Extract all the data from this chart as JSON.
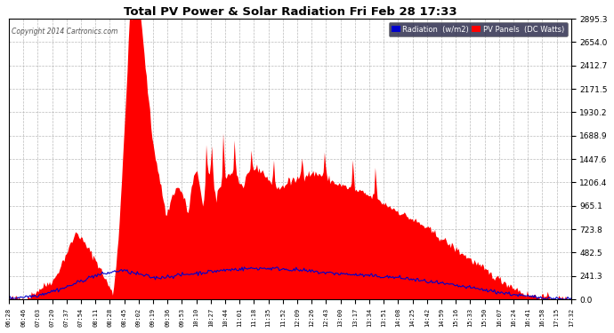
{
  "title": "Total PV Power & Solar Radiation Fri Feb 28 17:33",
  "copyright": "Copyright 2014 Cartronics.com",
  "bg_color": "#ffffff",
  "plot_bg_color": "#ffffff",
  "grid_color": "#aaaaaa",
  "pv_color": "#ff0000",
  "radiation_color": "#0000cc",
  "yticks": [
    0.0,
    241.3,
    482.5,
    723.8,
    965.1,
    1206.4,
    1447.6,
    1688.9,
    1930.2,
    2171.5,
    2412.7,
    2654.0,
    2895.3
  ],
  "ylim": [
    0,
    2895.3
  ],
  "legend_radiation_bg": "#0000cc",
  "legend_pv_bg": "#ff0000",
  "legend_radiation_text": "Radiation  (w/m2)",
  "legend_pv_text": "PV Panels  (DC Watts)",
  "x_labels": [
    "06:28",
    "06:46",
    "07:03",
    "07:20",
    "07:37",
    "07:54",
    "08:11",
    "08:28",
    "08:45",
    "09:02",
    "09:19",
    "09:36",
    "09:53",
    "10:10",
    "10:27",
    "10:44",
    "11:01",
    "11:18",
    "11:35",
    "11:52",
    "12:09",
    "12:26",
    "12:43",
    "13:00",
    "13:17",
    "13:34",
    "13:51",
    "14:08",
    "14:25",
    "14:42",
    "14:59",
    "15:16",
    "15:33",
    "15:50",
    "16:07",
    "16:24",
    "16:41",
    "16:58",
    "17:15",
    "17:32"
  ]
}
